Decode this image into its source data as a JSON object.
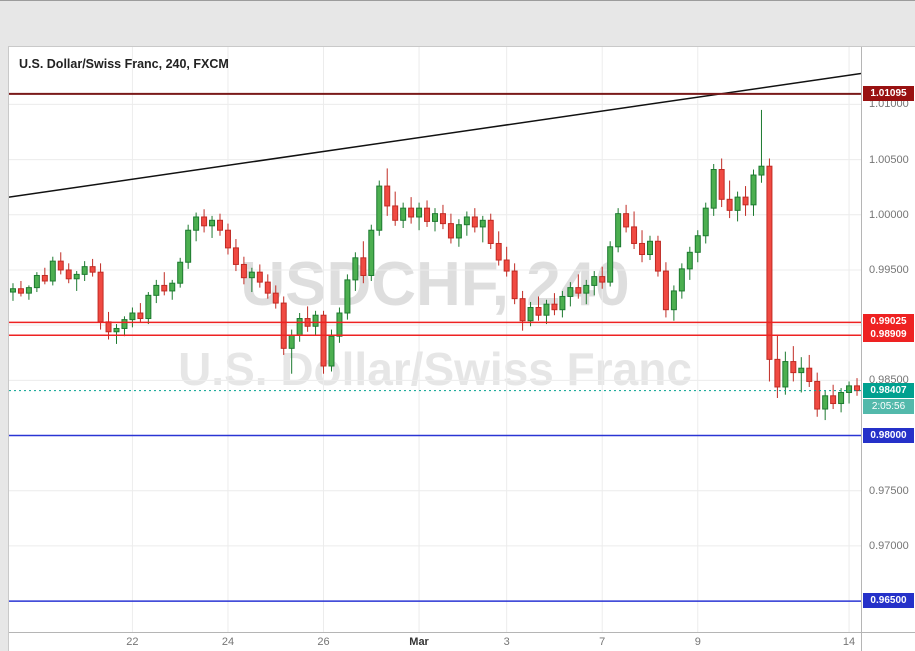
{
  "chart": {
    "title": "U.S. Dollar/Swiss Franc, 240, FXCM",
    "watermark_line1": "USDCHF, 240",
    "watermark_line2": "U.S. Dollar/Swiss Franc"
  },
  "chart_data": {
    "type": "candlestick",
    "title": "U.S. Dollar/Swiss Franc, 240, FXCM",
    "symbol": "USDCHF",
    "timeframe": "240",
    "provider": "FXCM",
    "price_axis_range": [
      0.9622,
      1.0152
    ],
    "grid_prices": [
      0.965,
      0.97,
      0.975,
      0.98,
      0.985,
      0.99,
      0.995,
      1.0,
      1.005,
      1.01
    ],
    "y_axis_labels": [
      {
        "price": 1.01,
        "text": "1.01000"
      },
      {
        "price": 1.005,
        "text": "1.00500"
      },
      {
        "price": 1.0,
        "text": "1.00000"
      },
      {
        "price": 0.995,
        "text": "0.99500"
      },
      {
        "price": 0.985,
        "text": "0.98500"
      },
      {
        "price": 0.975,
        "text": "0.97500"
      },
      {
        "price": 0.97,
        "text": "0.97000"
      }
    ],
    "x_axis_ticks": [
      {
        "index": 15,
        "text": "22",
        "major": false
      },
      {
        "index": 27,
        "text": "24",
        "major": false
      },
      {
        "index": 39,
        "text": "26",
        "major": false
      },
      {
        "index": 51,
        "text": "Mar",
        "major": true
      },
      {
        "index": 62,
        "text": "3",
        "major": false
      },
      {
        "index": 74,
        "text": "7",
        "major": false
      },
      {
        "index": 86,
        "text": "9",
        "major": false
      },
      {
        "index": 105,
        "text": "14",
        "major": false
      }
    ],
    "horizontal_levels": [
      {
        "price": 1.01095,
        "text": "1.01095",
        "line_color": "#7a1a1a",
        "badge_color": "#991111",
        "width": 2
      },
      {
        "price": 0.99025,
        "text": "0.99025",
        "line_color": "#ee2222",
        "badge_color": "#ee2222",
        "width": 1.5
      },
      {
        "price": 0.98909,
        "text": "0.98909",
        "line_color": "#ee2222",
        "badge_color": "#ee2222",
        "width": 1.5
      },
      {
        "price": 0.98,
        "text": "0.98000",
        "line_color": "#2a35d4",
        "badge_color": "#2531c9",
        "width": 1.5
      },
      {
        "price": 0.965,
        "text": "0.96500",
        "line_color": "#2a35d4",
        "badge_color": "#2531c9",
        "width": 1.5
      }
    ],
    "current_price": {
      "price": 0.98407,
      "text": "0.98407",
      "countdown": "2:05:56",
      "badge_color": "#00a08f",
      "countdown_color": "#53b9ab",
      "line_color": "#00a08f"
    },
    "trend_line": {
      "start_price": 1.0016,
      "end_price": 1.0128,
      "color": "#111111"
    },
    "candle_colors": {
      "up_fill": "#4caf50",
      "up_stroke": "#1d7a30",
      "down_fill": "#f04a42",
      "down_stroke": "#c02b24"
    },
    "candles": [
      [
        0.993,
        0.9938,
        0.9922,
        0.9933
      ],
      [
        0.9933,
        0.994,
        0.9926,
        0.9929
      ],
      [
        0.9929,
        0.9936,
        0.9923,
        0.9934
      ],
      [
        0.9934,
        0.9948,
        0.993,
        0.9945
      ],
      [
        0.9945,
        0.9952,
        0.9937,
        0.994
      ],
      [
        0.994,
        0.9962,
        0.9936,
        0.9958
      ],
      [
        0.9958,
        0.9966,
        0.9946,
        0.995
      ],
      [
        0.995,
        0.9956,
        0.9938,
        0.9942
      ],
      [
        0.9942,
        0.9949,
        0.9931,
        0.9946
      ],
      [
        0.9946,
        0.9958,
        0.994,
        0.9953
      ],
      [
        0.9953,
        0.996,
        0.9944,
        0.9948
      ],
      [
        0.9948,
        0.9956,
        0.9896,
        0.9903
      ],
      [
        0.9903,
        0.9912,
        0.9887,
        0.9894
      ],
      [
        0.9894,
        0.9901,
        0.9883,
        0.9897
      ],
      [
        0.9897,
        0.9908,
        0.989,
        0.9905
      ],
      [
        0.9905,
        0.9916,
        0.9898,
        0.9911
      ],
      [
        0.9911,
        0.992,
        0.9902,
        0.9906
      ],
      [
        0.9906,
        0.993,
        0.9901,
        0.9927
      ],
      [
        0.9927,
        0.9941,
        0.992,
        0.9936
      ],
      [
        0.9936,
        0.9948,
        0.9927,
        0.9931
      ],
      [
        0.9931,
        0.9941,
        0.9923,
        0.9938
      ],
      [
        0.9938,
        0.9961,
        0.9934,
        0.9957
      ],
      [
        0.9957,
        0.9991,
        0.9951,
        0.9986
      ],
      [
        0.9986,
        1.0002,
        0.9976,
        0.9998
      ],
      [
        0.9998,
        1.0005,
        0.9984,
        0.999
      ],
      [
        0.999,
        0.9999,
        0.9979,
        0.9995
      ],
      [
        0.9995,
        1.0001,
        0.9981,
        0.9986
      ],
      [
        0.9986,
        0.9992,
        0.9964,
        0.997
      ],
      [
        0.997,
        0.9978,
        0.9949,
        0.9955
      ],
      [
        0.9955,
        0.9962,
        0.9937,
        0.9943
      ],
      [
        0.9943,
        0.9952,
        0.993,
        0.9948
      ],
      [
        0.9948,
        0.9955,
        0.9934,
        0.9939
      ],
      [
        0.9939,
        0.9946,
        0.9924,
        0.9929
      ],
      [
        0.9929,
        0.9936,
        0.9915,
        0.992
      ],
      [
        0.992,
        0.9926,
        0.9873,
        0.9879
      ],
      [
        0.9879,
        0.9896,
        0.9856,
        0.9891
      ],
      [
        0.9891,
        0.9911,
        0.9885,
        0.9906
      ],
      [
        0.9906,
        0.9917,
        0.9894,
        0.9899
      ],
      [
        0.9899,
        0.9913,
        0.9891,
        0.9909
      ],
      [
        0.9909,
        0.9913,
        0.9856,
        0.9863
      ],
      [
        0.9863,
        0.9896,
        0.9858,
        0.989
      ],
      [
        0.989,
        0.9916,
        0.9884,
        0.9911
      ],
      [
        0.9911,
        0.9946,
        0.9905,
        0.9941
      ],
      [
        0.9941,
        0.9966,
        0.9931,
        0.9961
      ],
      [
        0.9961,
        0.9976,
        0.9938,
        0.9945
      ],
      [
        0.9945,
        0.9991,
        0.994,
        0.9986
      ],
      [
        0.9986,
        1.0031,
        0.9981,
        1.0026
      ],
      [
        1.0026,
        1.0042,
        0.9999,
        1.0008
      ],
      [
        1.0008,
        1.0021,
        0.999,
        0.9995
      ],
      [
        0.9995,
        1.0011,
        0.9988,
        1.0006
      ],
      [
        1.0006,
        1.0016,
        0.9992,
        0.9998
      ],
      [
        0.9998,
        1.0011,
        0.9986,
        1.0006
      ],
      [
        1.0006,
        1.0013,
        0.9989,
        0.9994
      ],
      [
        0.9994,
        1.0006,
        0.9985,
        1.0001
      ],
      [
        1.0001,
        1.0009,
        0.9987,
        0.9992
      ],
      [
        0.9992,
        1.0001,
        0.9974,
        0.9979
      ],
      [
        0.9979,
        0.9996,
        0.9971,
        0.9991
      ],
      [
        0.9991,
        1.0003,
        0.9981,
        0.9998
      ],
      [
        0.9998,
        1.0006,
        0.9984,
        0.9989
      ],
      [
        0.9989,
        0.9999,
        0.9975,
        0.9995
      ],
      [
        0.9995,
        1.0001,
        0.9969,
        0.9974
      ],
      [
        0.9974,
        0.9985,
        0.9954,
        0.9959
      ],
      [
        0.9959,
        0.9971,
        0.9944,
        0.9949
      ],
      [
        0.9949,
        0.9956,
        0.9919,
        0.9924
      ],
      [
        0.9924,
        0.9931,
        0.9895,
        0.9904
      ],
      [
        0.9904,
        0.9921,
        0.9899,
        0.9916
      ],
      [
        0.9916,
        0.9926,
        0.9904,
        0.9909
      ],
      [
        0.9909,
        0.9923,
        0.9901,
        0.9919
      ],
      [
        0.9919,
        0.9929,
        0.9909,
        0.9914
      ],
      [
        0.9914,
        0.9931,
        0.9907,
        0.9926
      ],
      [
        0.9926,
        0.9939,
        0.9917,
        0.9934
      ],
      [
        0.9934,
        0.9946,
        0.9924,
        0.9929
      ],
      [
        0.9929,
        0.9941,
        0.9919,
        0.9936
      ],
      [
        0.9936,
        0.9949,
        0.9927,
        0.9944
      ],
      [
        0.9944,
        0.9953,
        0.9933,
        0.9939
      ],
      [
        0.9939,
        0.9976,
        0.9935,
        0.9971
      ],
      [
        0.9971,
        1.0006,
        0.9966,
        1.0001
      ],
      [
        1.0001,
        1.0009,
        0.9984,
        0.9989
      ],
      [
        0.9989,
        1.0003,
        0.9969,
        0.9974
      ],
      [
        0.9974,
        0.9986,
        0.9957,
        0.9964
      ],
      [
        0.9964,
        0.9981,
        0.9959,
        0.9976
      ],
      [
        0.9976,
        0.9981,
        0.9944,
        0.9949
      ],
      [
        0.9949,
        0.9957,
        0.9907,
        0.9914
      ],
      [
        0.9914,
        0.9936,
        0.9904,
        0.9931
      ],
      [
        0.9931,
        0.9956,
        0.9924,
        0.9951
      ],
      [
        0.9951,
        0.9971,
        0.9941,
        0.9966
      ],
      [
        0.9966,
        0.9986,
        0.9957,
        0.9981
      ],
      [
        0.9981,
        1.0011,
        0.9974,
        1.0006
      ],
      [
        1.0006,
        1.0046,
        0.9999,
        1.0041
      ],
      [
        1.0041,
        1.0051,
        1.0007,
        1.0014
      ],
      [
        1.0014,
        1.0031,
        0.9997,
        1.0004
      ],
      [
        1.0004,
        1.0021,
        0.9994,
        1.0016
      ],
      [
        1.0016,
        1.0026,
        0.9999,
        1.0009
      ],
      [
        1.0009,
        1.0041,
        0.9999,
        1.0036
      ],
      [
        1.0036,
        1.0095,
        1.0029,
        1.0044
      ],
      [
        1.0044,
        1.0051,
        0.9849,
        0.9869
      ],
      [
        0.9869,
        0.9891,
        0.9834,
        0.9844
      ],
      [
        0.9844,
        0.9876,
        0.9837,
        0.9867
      ],
      [
        0.9867,
        0.9881,
        0.9849,
        0.9857
      ],
      [
        0.9857,
        0.9871,
        0.9839,
        0.9861
      ],
      [
        0.9861,
        0.9873,
        0.9844,
        0.9849
      ],
      [
        0.9849,
        0.9857,
        0.9817,
        0.9824
      ],
      [
        0.9824,
        0.9841,
        0.9814,
        0.9836
      ],
      [
        0.9836,
        0.9846,
        0.9824,
        0.9829
      ],
      [
        0.9829,
        0.9843,
        0.9821,
        0.9839
      ],
      [
        0.9839,
        0.9849,
        0.9829,
        0.9845
      ],
      [
        0.9845,
        0.9852,
        0.9836,
        0.98407
      ]
    ]
  }
}
